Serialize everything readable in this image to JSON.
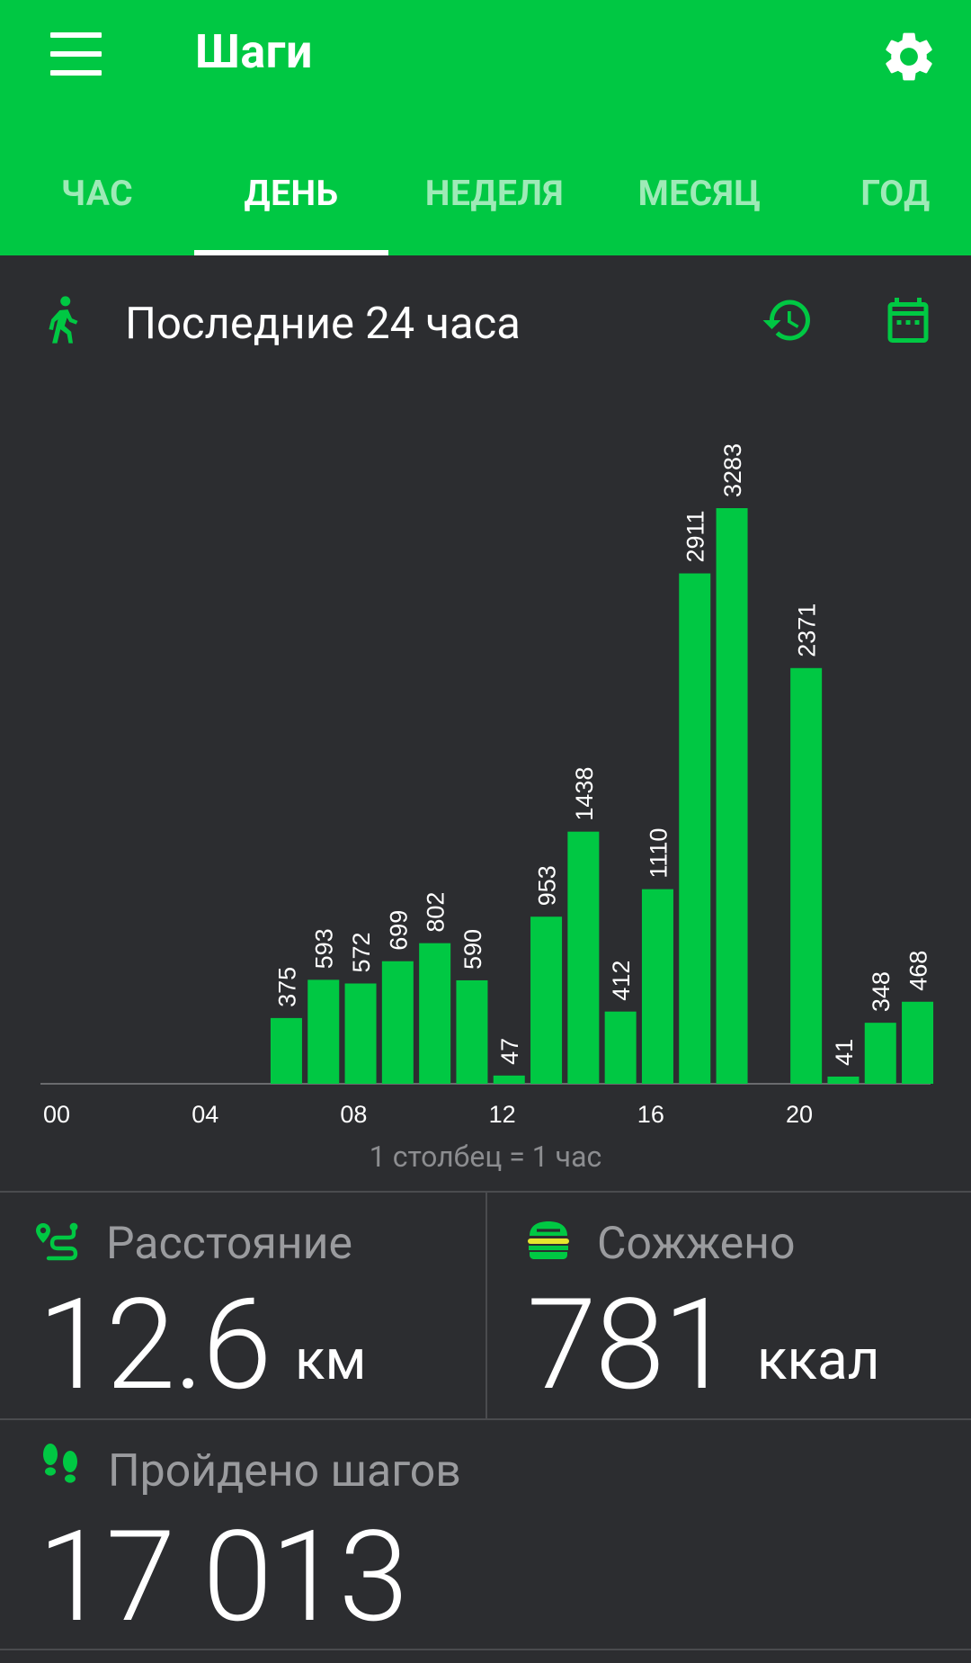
{
  "header": {
    "title": "Шаги",
    "menu_icon": "hamburger-menu-icon",
    "settings_icon": "gear-icon"
  },
  "tabs": [
    {
      "label": "ЧАС",
      "active": false
    },
    {
      "label": "ДЕНЬ",
      "active": true
    },
    {
      "label": "НЕДЕЛЯ",
      "active": false
    },
    {
      "label": "МЕСЯЦ",
      "active": false
    },
    {
      "label": "ГОД",
      "active": false
    }
  ],
  "section": {
    "title": "Последние 24 часа",
    "icons": [
      "walking-person-icon",
      "history-icon",
      "calendar-icon"
    ]
  },
  "chart_data": {
    "type": "bar",
    "x": [
      0,
      1,
      2,
      3,
      4,
      5,
      6,
      7,
      8,
      9,
      10,
      11,
      12,
      13,
      14,
      15,
      16,
      17,
      18,
      19,
      20,
      21,
      22,
      23
    ],
    "values": [
      0,
      0,
      0,
      0,
      0,
      0,
      375,
      593,
      572,
      699,
      802,
      590,
      47,
      953,
      1438,
      412,
      1110,
      2911,
      3283,
      0,
      2371,
      41,
      348,
      468
    ],
    "data_labels": [
      "",
      "",
      "",
      "",
      "",
      "",
      "375",
      "593",
      "572",
      "699",
      "802",
      "590",
      "47",
      "953",
      "1438",
      "412",
      "1110",
      "2911",
      "3283",
      "",
      "2371",
      "41",
      "348",
      "468"
    ],
    "x_tick_labels": [
      "00",
      "04",
      "08",
      "12",
      "16",
      "20"
    ],
    "x_tick_positions": [
      0,
      4,
      8,
      12,
      16,
      20
    ],
    "ylim": [
      0,
      3283
    ],
    "grid": false,
    "bar_color": "#00c843",
    "note": "1 столбец = 1 час"
  },
  "stats": {
    "distance": {
      "label": "Расстояние",
      "value": "12.6",
      "unit": "км",
      "icon": "route-icon"
    },
    "calories": {
      "label": "Сожжено",
      "value": "781",
      "unit": "ккал",
      "icon": "burger-icon"
    },
    "steps": {
      "label": "Пройдено шагов",
      "value": "17 013",
      "icon": "footprints-icon"
    }
  },
  "colors": {
    "accent": "#00c843",
    "background": "#2c2d30",
    "muted_text": "#9a9b9e"
  }
}
